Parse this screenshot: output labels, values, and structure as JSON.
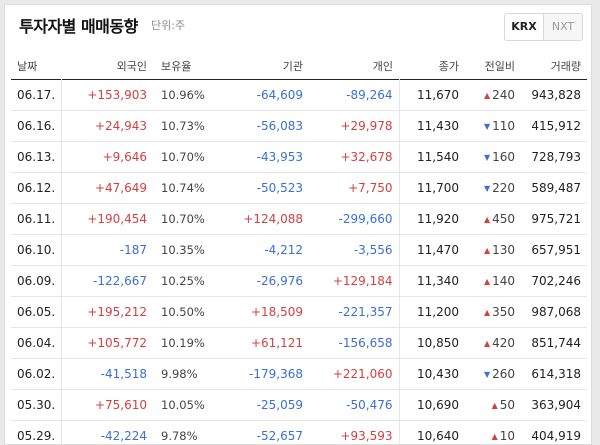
{
  "header": {
    "title": "투자자별 매매동향",
    "unit": "단위:주",
    "tabs": [
      {
        "label": "KRX",
        "active": true
      },
      {
        "label": "NXT",
        "active": false
      }
    ]
  },
  "table": {
    "columns": [
      "날짜",
      "외국인",
      "보유율",
      "기관",
      "개인",
      "종가",
      "전일비",
      "거래량"
    ],
    "rows": [
      {
        "date": "06.17.",
        "foreign": "+153,903",
        "hold": "10.96%",
        "inst": "-64,609",
        "indiv": "-89,264",
        "close": "11,670",
        "dir": "up",
        "change": "240",
        "volume": "943,828"
      },
      {
        "date": "06.16.",
        "foreign": "+24,943",
        "hold": "10.73%",
        "inst": "-56,083",
        "indiv": "+29,978",
        "close": "11,430",
        "dir": "down",
        "change": "110",
        "volume": "415,912"
      },
      {
        "date": "06.13.",
        "foreign": "+9,646",
        "hold": "10.70%",
        "inst": "-43,953",
        "indiv": "+32,678",
        "close": "11,540",
        "dir": "down",
        "change": "160",
        "volume": "728,793"
      },
      {
        "date": "06.12.",
        "foreign": "+47,649",
        "hold": "10.74%",
        "inst": "-50,523",
        "indiv": "+7,750",
        "close": "11,700",
        "dir": "down",
        "change": "220",
        "volume": "589,487"
      },
      {
        "date": "06.11.",
        "foreign": "+190,454",
        "hold": "10.70%",
        "inst": "+124,088",
        "indiv": "-299,660",
        "close": "11,920",
        "dir": "up",
        "change": "450",
        "volume": "975,721"
      },
      {
        "date": "06.10.",
        "foreign": "-187",
        "hold": "10.35%",
        "inst": "-4,212",
        "indiv": "-3,556",
        "close": "11,470",
        "dir": "up",
        "change": "130",
        "volume": "657,951"
      },
      {
        "date": "06.09.",
        "foreign": "-122,667",
        "hold": "10.25%",
        "inst": "-26,976",
        "indiv": "+129,184",
        "close": "11,340",
        "dir": "up",
        "change": "140",
        "volume": "702,246"
      },
      {
        "date": "06.05.",
        "foreign": "+195,212",
        "hold": "10.50%",
        "inst": "+18,509",
        "indiv": "-221,357",
        "close": "11,200",
        "dir": "up",
        "change": "350",
        "volume": "987,068"
      },
      {
        "date": "06.04.",
        "foreign": "+105,772",
        "hold": "10.19%",
        "inst": "+61,121",
        "indiv": "-156,658",
        "close": "10,850",
        "dir": "up",
        "change": "420",
        "volume": "851,744"
      },
      {
        "date": "06.02.",
        "foreign": "-41,518",
        "hold": "9.98%",
        "inst": "-179,368",
        "indiv": "+221,060",
        "close": "10,430",
        "dir": "down",
        "change": "260",
        "volume": "614,318"
      },
      {
        "date": "05.30.",
        "foreign": "+75,610",
        "hold": "10.05%",
        "inst": "-25,059",
        "indiv": "-50,476",
        "close": "10,690",
        "dir": "up",
        "change": "50",
        "volume": "363,904"
      },
      {
        "date": "05.29.",
        "foreign": "-42,224",
        "hold": "9.78%",
        "inst": "-52,657",
        "indiv": "+93,593",
        "close": "10,640",
        "dir": "up",
        "change": "10",
        "volume": "404,919"
      }
    ]
  },
  "colors": {
    "up": "#d24141",
    "down": "#3a6fd6"
  }
}
